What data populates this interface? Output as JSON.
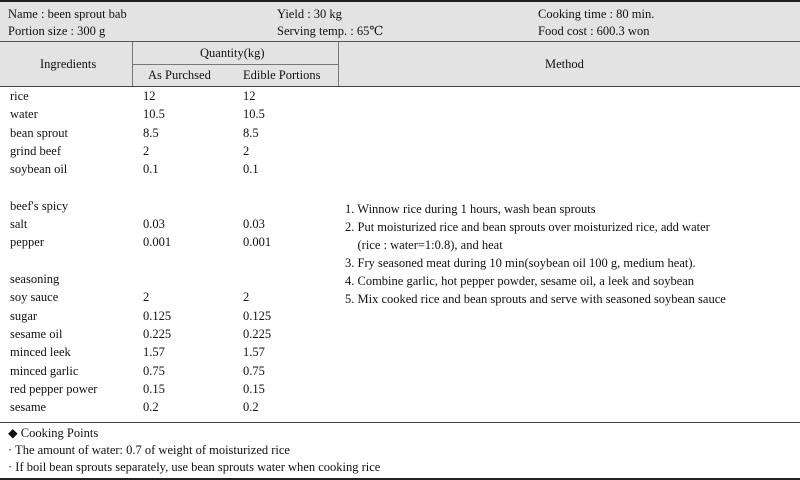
{
  "header": {
    "name": "Name : been sprout bab",
    "yield": "Yield : 30 kg",
    "cooking_time": "Cooking time : 80 min.",
    "portion_size": "Portion size : 300 g",
    "serving_temp": "Serving temp. : 65℃",
    "food_cost": "Food cost : 600.3 won"
  },
  "columns": {
    "ingredients": "Ingredients",
    "quantity": "Quantity(kg)",
    "as_purchased": "As Purchsed",
    "edible_portions": "Edible Portions",
    "method": "Method"
  },
  "rows": [
    {
      "name": "rice",
      "ap": "12",
      "ep": "12"
    },
    {
      "name": "water",
      "ap": "10.5",
      "ep": "10.5"
    },
    {
      "name": "bean sprout",
      "ap": "8.5",
      "ep": "8.5"
    },
    {
      "name": "grind beef",
      "ap": "2",
      "ep": "2"
    },
    {
      "name": "soybean oil",
      "ap": "0.1",
      "ep": "0.1"
    },
    {
      "name": "",
      "ap": "",
      "ep": ""
    },
    {
      "name": "beef's spicy",
      "ap": "",
      "ep": ""
    },
    {
      "name": "salt",
      "ap": "0.03",
      "ep": "0.03"
    },
    {
      "name": "pepper",
      "ap": "0.001",
      "ep": "0.001"
    },
    {
      "name": "",
      "ap": "",
      "ep": ""
    },
    {
      "name": "seasoning",
      "ap": "",
      "ep": ""
    },
    {
      "name": "soy sauce",
      "ap": "2",
      "ep": "2"
    },
    {
      "name": "sugar",
      "ap": "0.125",
      "ep": "0.125"
    },
    {
      "name": "sesame oil",
      "ap": "0.225",
      "ep": "0.225"
    },
    {
      "name": "minced leek",
      "ap": "1.57",
      "ep": "1.57"
    },
    {
      "name": "minced garlic",
      "ap": "0.75",
      "ep": "0.75"
    },
    {
      "name": "red pepper power",
      "ap": "0.15",
      "ep": "0.15"
    },
    {
      "name": "sesame",
      "ap": "0.2",
      "ep": "0.2"
    }
  ],
  "method": [
    "1. Winnow rice during 1 hours, wash bean sprouts",
    "2. Put moisturized rice and bean sprouts over moisturized rice, add water",
    "    (rice : water=1:0.8), and heat",
    "3. Fry seasoned meat during 10 min(soybean oil 100 g, medium heat).",
    "4. Combine garlic, hot pepper powder, sesame oil, a leek and soybean",
    "5. Mix cooked rice and bean sprouts and serve with seasoned soybean sauce"
  ],
  "cooking_points": {
    "marker": "◆",
    "title": "Cooking Points",
    "items": [
      "· The amount of water: 0.7 of weight of moisturized rice",
      "· If boil bean sprouts separately, use bean sprouts water when cooking rice"
    ]
  }
}
